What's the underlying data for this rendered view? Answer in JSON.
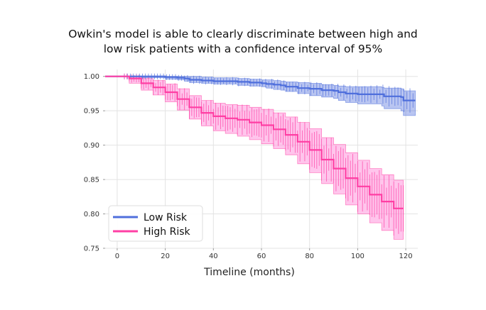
{
  "chart_data": {
    "type": "line",
    "title": [
      "Owkin's model is able to clearly discriminate between high and",
      "low risk patients with a confidence interval of 95%"
    ],
    "xlabel": "Timeline (months)",
    "ylabel": "",
    "xlim": [
      -5,
      125
    ],
    "ylim": [
      0.75,
      1.01
    ],
    "xticks": [
      0,
      20,
      40,
      60,
      80,
      100,
      120
    ],
    "xtick_labels": [
      "0",
      "20",
      "40",
      "60",
      "80",
      "100",
      "120"
    ],
    "yticks": [
      0.75,
      0.8,
      0.85,
      0.9,
      0.95,
      1.0
    ],
    "ytick_labels": [
      "0.75",
      "0.80",
      "0.85",
      "0.90",
      "0.95",
      "1.00"
    ],
    "grid": true,
    "legend_position": "bottom-left",
    "series": [
      {
        "name": "Low Risk",
        "color": "#4f6fdc",
        "step": true,
        "x": [
          -5,
          10,
          20,
          25,
          28,
          30,
          35,
          40,
          50,
          55,
          60,
          62,
          65,
          68,
          70,
          75,
          80,
          85,
          90,
          92,
          95,
          100,
          110,
          111,
          118,
          119,
          124
        ],
        "y": [
          1.0,
          1.0,
          0.999,
          0.998,
          0.997,
          0.995,
          0.994,
          0.993,
          0.992,
          0.991,
          0.99,
          0.989,
          0.988,
          0.987,
          0.985,
          0.983,
          0.982,
          0.98,
          0.979,
          0.977,
          0.975,
          0.974,
          0.974,
          0.971,
          0.97,
          0.965,
          0.965
        ],
        "ci_lower": [
          1.0,
          0.998,
          0.996,
          0.995,
          0.993,
          0.991,
          0.99,
          0.989,
          0.987,
          0.986,
          0.985,
          0.983,
          0.981,
          0.98,
          0.978,
          0.975,
          0.972,
          0.97,
          0.968,
          0.965,
          0.962,
          0.96,
          0.957,
          0.953,
          0.95,
          0.943,
          0.943
        ],
        "ci_upper": [
          1.0,
          1.0,
          1.0,
          1.0,
          1.0,
          1.0,
          0.999,
          0.998,
          0.997,
          0.996,
          0.995,
          0.995,
          0.994,
          0.993,
          0.992,
          0.991,
          0.99,
          0.988,
          0.987,
          0.986,
          0.985,
          0.985,
          0.984,
          0.983,
          0.982,
          0.979,
          0.979
        ]
      },
      {
        "name": "High Risk",
        "color": "#ff3fa4",
        "band_color": "#ff9ee0",
        "step": true,
        "x": [
          -5,
          5,
          10,
          15,
          20,
          25,
          30,
          35,
          40,
          45,
          50,
          55,
          60,
          65,
          70,
          75,
          80,
          85,
          90,
          95,
          100,
          105,
          110,
          115,
          119
        ],
        "y": [
          1.0,
          0.997,
          0.99,
          0.984,
          0.977,
          0.967,
          0.955,
          0.947,
          0.942,
          0.939,
          0.937,
          0.933,
          0.929,
          0.923,
          0.915,
          0.905,
          0.893,
          0.879,
          0.866,
          0.852,
          0.84,
          0.828,
          0.818,
          0.808,
          0.808
        ],
        "ci_lower": [
          1.0,
          0.99,
          0.98,
          0.973,
          0.963,
          0.951,
          0.938,
          0.928,
          0.921,
          0.917,
          0.913,
          0.908,
          0.902,
          0.895,
          0.886,
          0.873,
          0.86,
          0.844,
          0.829,
          0.813,
          0.8,
          0.787,
          0.776,
          0.763,
          0.763
        ],
        "ci_upper": [
          1.0,
          1.0,
          0.997,
          0.994,
          0.989,
          0.982,
          0.972,
          0.965,
          0.961,
          0.959,
          0.958,
          0.955,
          0.952,
          0.947,
          0.941,
          0.933,
          0.924,
          0.911,
          0.901,
          0.889,
          0.878,
          0.866,
          0.857,
          0.849,
          0.849
        ]
      }
    ]
  }
}
